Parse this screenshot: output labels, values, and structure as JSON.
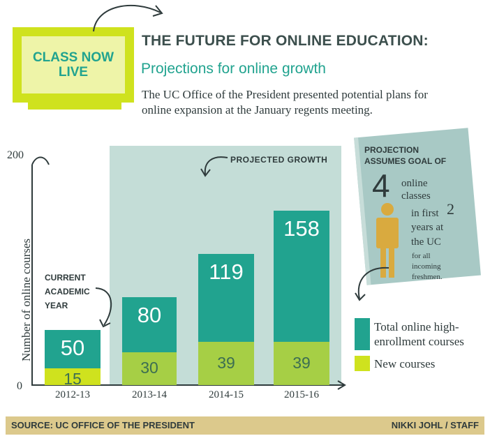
{
  "monitor": {
    "line1": "CLASS NOW",
    "line2": "LIVE"
  },
  "header": {
    "title": "THE FUTURE FOR ONLINE EDUCATION:",
    "subtitle": "Projections for online growth",
    "intro": "The UC Office of the President presented potential plans for online expansion at the January regents meeting."
  },
  "annotations": {
    "projected": "PROJECTED GROWTH",
    "current_line1": "CURRENT",
    "current_line2": "ACADEMIC",
    "current_line3": "YEAR"
  },
  "note": {
    "head_line1": "PROJECTION",
    "head_line2": "ASSUMES GOAL OF",
    "number": "4",
    "l1": "online",
    "l2": "classes",
    "l3": "in first",
    "num2": "2",
    "l4": "years at",
    "l5": "the UC",
    "s1": "for all",
    "s2": "incoming",
    "s3": "freshmen."
  },
  "legend": {
    "total_line1": "Total online high-",
    "total_line2": "enrollment courses",
    "new": "New courses"
  },
  "footer": {
    "source": "SOURCE: UC OFFICE OF THE PRESIDENT",
    "credit": "NIKKI JOHL / STAFF"
  },
  "colors": {
    "total": "#21a38f",
    "new": "#a6cf45",
    "projected_region": "#c4ddd7",
    "monitor": "#cfe21e"
  },
  "chart_data": {
    "type": "bar",
    "title": "THE FUTURE FOR ONLINE EDUCATION: Projections for online growth",
    "ylabel": "Number of online courses",
    "ylim": [
      0,
      200
    ],
    "yticks": [
      "0",
      "200"
    ],
    "categories": [
      "2012-13",
      "2013-14",
      "2014-15",
      "2015-16"
    ],
    "series": [
      {
        "name": "Total online high-enrollment courses",
        "values": [
          50,
          80,
          119,
          158
        ]
      },
      {
        "name": "New courses",
        "values": [
          15,
          30,
          39,
          39
        ]
      }
    ],
    "legend": "right"
  }
}
